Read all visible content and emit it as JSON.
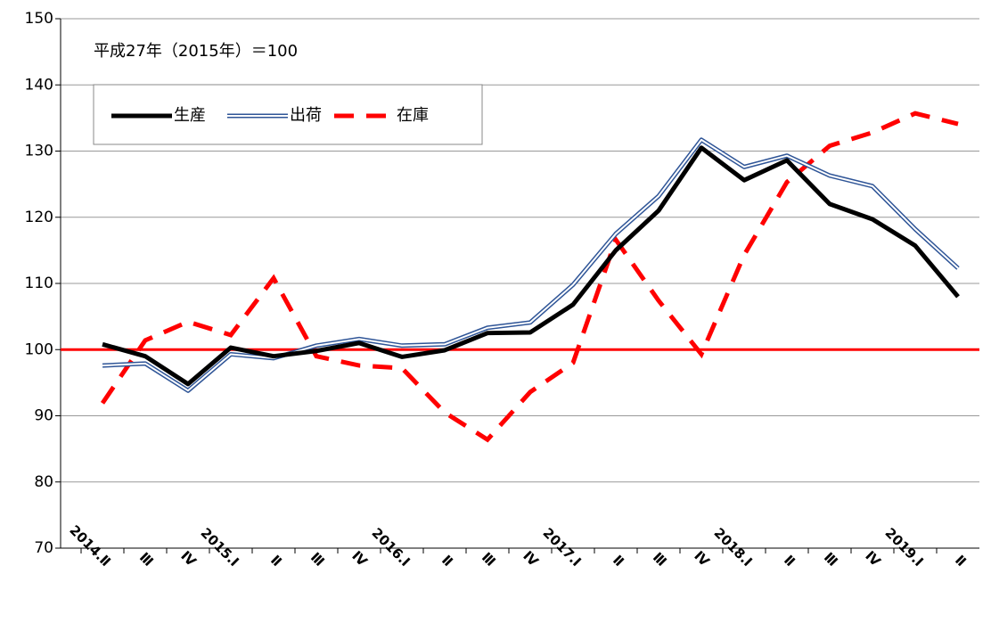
{
  "chart_data": {
    "type": "line",
    "annotation": "平成27年（2015年）＝100",
    "categories": [
      "2014.Ⅱ",
      "Ⅲ",
      "Ⅳ",
      "2015.Ⅰ",
      "Ⅱ",
      "Ⅲ",
      "Ⅳ",
      "2016.Ⅰ",
      "Ⅱ",
      "Ⅲ",
      "Ⅳ",
      "2017.Ⅰ",
      "Ⅱ",
      "Ⅲ",
      "Ⅳ",
      "2018.Ⅰ",
      "Ⅱ",
      "Ⅲ",
      "Ⅳ",
      "2019.Ⅰ",
      "Ⅱ"
    ],
    "series": [
      {
        "name": "生産",
        "color": "#000000",
        "line_style": "solid",
        "values": [
          100.8,
          99,
          94.8,
          100.3,
          99,
          99.8,
          101,
          98.9,
          99.9,
          102.5,
          102.6,
          106.8,
          115,
          121,
          130.5,
          125.6,
          128.6,
          122,
          119.7,
          115.7,
          108
        ]
      },
      {
        "name": "出荷",
        "color": "#2f5597",
        "line_style": "double",
        "values": [
          97.6,
          97.9,
          93.8,
          99.3,
          98.7,
          100.6,
          101.6,
          100.6,
          100.8,
          103.3,
          104.1,
          109.8,
          117.5,
          123.2,
          131.7,
          127.6,
          129.3,
          126.3,
          124.7,
          118.2,
          112.3
        ]
      },
      {
        "name": "在庫",
        "color": "#ff0000",
        "line_style": "dashed",
        "values": [
          91.9,
          101.4,
          104.2,
          102.2,
          110.8,
          99,
          97.6,
          97.2,
          90.5,
          86.4,
          93.6,
          98,
          116.6,
          107.4,
          99.3,
          114.3,
          125.3,
          130.8,
          132.8,
          135.7,
          134.1
        ]
      }
    ],
    "reference_line": {
      "value": 100,
      "color": "#ff0000"
    },
    "ylim": [
      70,
      150
    ],
    "yticks": [
      70,
      80,
      90,
      100,
      110,
      120,
      130,
      140,
      150
    ],
    "grid": true
  }
}
